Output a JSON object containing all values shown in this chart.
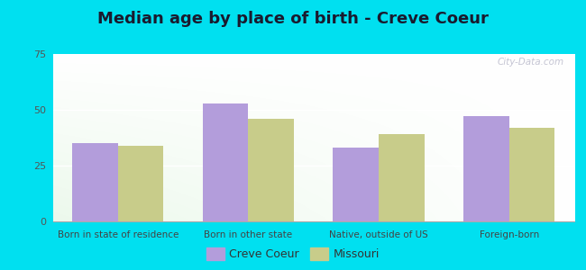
{
  "title": "Median age by place of birth - Creve Coeur",
  "categories": [
    "Born in state of residence",
    "Born in other state",
    "Native, outside of US",
    "Foreign-born"
  ],
  "creve_coeur_values": [
    35,
    53,
    33,
    47
  ],
  "missouri_values": [
    34,
    46,
    39,
    42
  ],
  "creve_coeur_color": "#b39ddb",
  "missouri_color": "#c8cc8a",
  "ylim": [
    0,
    75
  ],
  "yticks": [
    0,
    25,
    50,
    75
  ],
  "bar_width": 0.35,
  "background_outer": "#00e0f0",
  "title_fontsize": 13,
  "legend_labels": [
    "Creve Coeur",
    "Missouri"
  ],
  "watermark": "City-Data.com"
}
